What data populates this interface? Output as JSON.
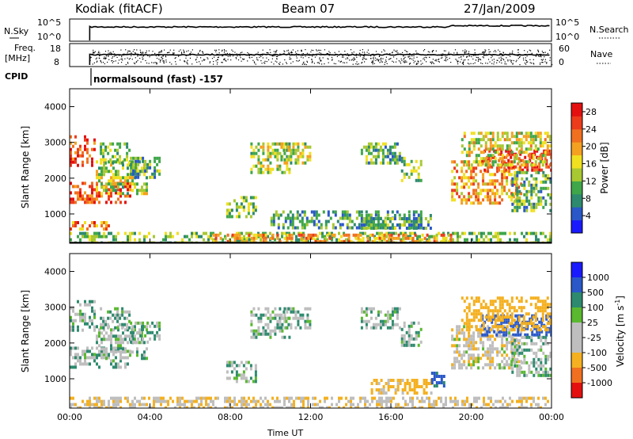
{
  "header": {
    "site": "Kodiak (fitACF)",
    "beam": "Beam 07",
    "date": "27/Jan/2009"
  },
  "strip_panels": {
    "sky": {
      "left_label": "N.Sky",
      "right_label": "N.Search",
      "left_ticks": [
        "10^5",
        "10^0"
      ],
      "right_ticks": [
        "10^5",
        "10^0"
      ]
    },
    "freq": {
      "left_label_1": "Freq.",
      "left_label_2": "[MHz]",
      "right_label": "Nave",
      "left_ticks": [
        "18",
        "8"
      ],
      "right_ticks": [
        "60",
        "0"
      ]
    },
    "cpid": {
      "label": "CPID",
      "program": "normalsound (fast) -157"
    }
  },
  "colors": {
    "power": [
      "#1a1aff",
      "#2a58c8",
      "#2e8a6e",
      "#3fa64a",
      "#a8c832",
      "#f0e020",
      "#f4a020",
      "#f07020",
      "#ec3c1c",
      "#e41010"
    ],
    "velocity": [
      "#e41010",
      "#f07020",
      "#f4b020",
      "#bebebe",
      "#bebebe",
      "#5ab830",
      "#2e8a6e",
      "#2a58c8",
      "#1a1aff"
    ]
  },
  "chart_data": [
    {
      "type": "heatmap",
      "name": "power",
      "xlabel": "",
      "ylabel": "Slant Range [km]",
      "x_ticks": [
        "00:00",
        "04:00",
        "08:00",
        "12:00",
        "16:00",
        "20:00",
        "00:00"
      ],
      "x_range_hours": [
        0,
        24
      ],
      "y_ticks": [
        1000,
        2000,
        3000,
        4000
      ],
      "y_range_km": [
        180,
        4500
      ],
      "colorbar": {
        "label": "Power [dB]",
        "range": [
          0,
          30
        ],
        "ticks": [
          "28",
          "24",
          "20",
          "16",
          "12",
          "8",
          "4"
        ]
      },
      "echo_regions": [
        {
          "t": [
            0.0,
            1.3
          ],
          "r": [
            2400,
            3200
          ],
          "value_db": 24
        },
        {
          "t": [
            0.0,
            3.0
          ],
          "r": [
            1300,
            1900
          ],
          "value_db": 25
        },
        {
          "t": [
            1.3,
            3.8
          ],
          "r": [
            1600,
            2500
          ],
          "value_db": 14
        },
        {
          "t": [
            1.5,
            3.0
          ],
          "r": [
            2400,
            3000
          ],
          "value_db": 12
        },
        {
          "t": [
            3.0,
            4.5
          ],
          "r": [
            2000,
            2600
          ],
          "value_db": 10
        },
        {
          "t": [
            0.0,
            2.0
          ],
          "r": [
            600,
            800
          ],
          "value_db": 22
        },
        {
          "t": [
            7.8,
            9.3
          ],
          "r": [
            900,
            1500
          ],
          "value_db": 12
        },
        {
          "t": [
            9.0,
            11.0
          ],
          "r": [
            2200,
            3000
          ],
          "value_db": 14
        },
        {
          "t": [
            10.5,
            12.0
          ],
          "r": [
            2400,
            3000
          ],
          "value_db": 14
        },
        {
          "t": [
            14.5,
            16.5
          ],
          "r": [
            2400,
            3000
          ],
          "value_db": 10
        },
        {
          "t": [
            16.5,
            17.5
          ],
          "r": [
            1900,
            2600
          ],
          "value_db": 12
        },
        {
          "t": [
            10.0,
            17.5
          ],
          "r": [
            600,
            1100
          ],
          "value_db": 9
        },
        {
          "t": [
            14.5,
            18.0
          ],
          "r": [
            600,
            1000
          ],
          "value_db": 10
        },
        {
          "t": [
            0.0,
            24.0
          ],
          "r": [
            180,
            500
          ],
          "value_db": 12
        },
        {
          "t": [
            7.0,
            19.0
          ],
          "r": [
            180,
            450
          ],
          "value_db": 20
        },
        {
          "t": [
            19.0,
            22.5
          ],
          "r": [
            1300,
            2500
          ],
          "value_db": 20
        },
        {
          "t": [
            20.5,
            24.0
          ],
          "r": [
            2200,
            2800
          ],
          "value_db": 27
        },
        {
          "t": [
            19.5,
            24.0
          ],
          "r": [
            2400,
            3300
          ],
          "value_db": 16
        },
        {
          "t": [
            22.0,
            24.0
          ],
          "r": [
            1100,
            2200
          ],
          "value_db": 10
        }
      ]
    },
    {
      "type": "heatmap",
      "name": "velocity",
      "xlabel": "Time UT",
      "ylabel": "Slant Range [km]",
      "x_ticks": [
        "00:00",
        "04:00",
        "08:00",
        "12:00",
        "16:00",
        "20:00",
        "00:00"
      ],
      "x_range_hours": [
        0,
        24
      ],
      "y_ticks": [
        1000,
        2000,
        3000,
        4000
      ],
      "y_range_km": [
        180,
        4500
      ],
      "colorbar": {
        "label": "Velocity [m s",
        "label_sup": "-1",
        "label_end": "]",
        "ticks": [
          "1000",
          "500",
          "100",
          "25",
          "-25",
          "-100",
          "-500",
          "-1000"
        ]
      },
      "echo_regions": [
        {
          "t": [
            0.0,
            1.3
          ],
          "r": [
            2400,
            3200
          ],
          "value_ms": 0
        },
        {
          "t": [
            0.0,
            3.0
          ],
          "r": [
            1300,
            1900
          ],
          "value_ms": 0
        },
        {
          "t": [
            1.3,
            3.8
          ],
          "r": [
            1600,
            2500
          ],
          "value_ms": 0
        },
        {
          "t": [
            1.5,
            3.0
          ],
          "r": [
            2400,
            3000
          ],
          "value_ms": 0
        },
        {
          "t": [
            3.0,
            4.5
          ],
          "r": [
            2000,
            2600
          ],
          "value_ms": 0
        },
        {
          "t": [
            7.8,
            9.3
          ],
          "r": [
            900,
            1500
          ],
          "value_ms": 0
        },
        {
          "t": [
            9.0,
            11.0
          ],
          "r": [
            2200,
            3000
          ],
          "value_ms": 0
        },
        {
          "t": [
            10.5,
            12.0
          ],
          "r": [
            2400,
            3000
          ],
          "value_ms": 0
        },
        {
          "t": [
            14.5,
            16.5
          ],
          "r": [
            2400,
            3000
          ],
          "value_ms": 0
        },
        {
          "t": [
            16.5,
            17.5
          ],
          "r": [
            1900,
            2600
          ],
          "value_ms": 0
        },
        {
          "t": [
            15.0,
            18.0
          ],
          "r": [
            600,
            1000
          ],
          "value_ms": -150
        },
        {
          "t": [
            18.0,
            18.6
          ],
          "r": [
            800,
            1200
          ],
          "value_ms": 150
        },
        {
          "t": [
            0.0,
            24.0
          ],
          "r": [
            180,
            500
          ],
          "value_ms": -80
        },
        {
          "t": [
            19.0,
            22.5
          ],
          "r": [
            1300,
            2500
          ],
          "value_ms": -60
        },
        {
          "t": [
            20.5,
            24.0
          ],
          "r": [
            2200,
            2800
          ],
          "value_ms": 300
        },
        {
          "t": [
            19.5,
            24.0
          ],
          "r": [
            2400,
            3300
          ],
          "value_ms": -200
        },
        {
          "t": [
            22.0,
            24.0
          ],
          "r": [
            1100,
            2200
          ],
          "value_ms": 0
        }
      ]
    }
  ]
}
